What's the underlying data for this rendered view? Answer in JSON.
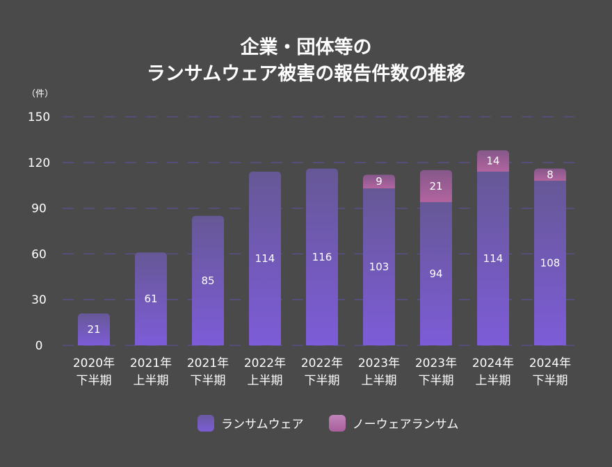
{
  "chart_data": {
    "type": "bar",
    "stacked": true,
    "title_lines": [
      "企業・団体等の",
      "ランサムウェア被害の報告件数の推移"
    ],
    "ylabel": "（件）",
    "ylim": [
      0,
      150
    ],
    "yticks": [
      "0",
      "30",
      "60",
      "90",
      "120",
      "150"
    ],
    "grid": true,
    "legend_position": "bottom",
    "categories": [
      [
        "2020年",
        "下半期"
      ],
      [
        "2021年",
        "上半期"
      ],
      [
        "2021年",
        "下半期"
      ],
      [
        "2022年",
        "上半期"
      ],
      [
        "2022年",
        "下半期"
      ],
      [
        "2023年",
        "上半期"
      ],
      [
        "2023年",
        "下半期"
      ],
      [
        "2024年",
        "上半期"
      ],
      [
        "2024年",
        "下半期"
      ]
    ],
    "series": [
      {
        "name": "ランサムウェア",
        "values": [
          21,
          61,
          85,
          114,
          116,
          103,
          94,
          114,
          108
        ],
        "color": "#7b5cd6"
      },
      {
        "name": "ノーウェアランサム",
        "values": [
          0,
          0,
          0,
          0,
          0,
          9,
          21,
          14,
          8
        ],
        "color": "#b0649e"
      }
    ]
  }
}
